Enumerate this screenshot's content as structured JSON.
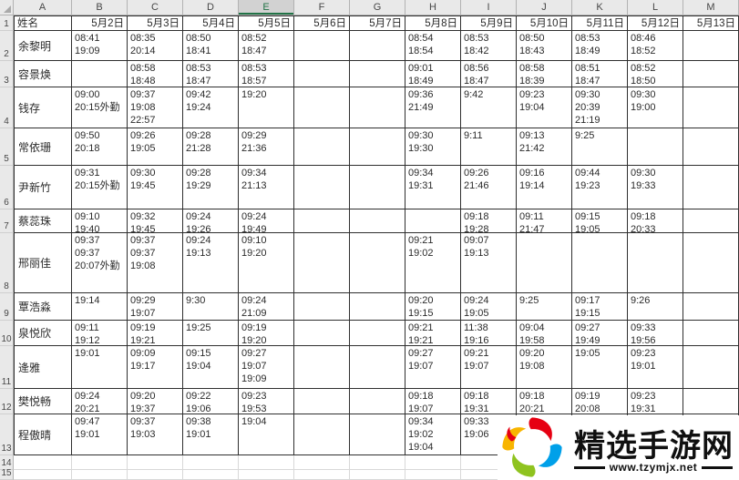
{
  "sheet": {
    "column_letters": [
      "A",
      "B",
      "C",
      "D",
      "E",
      "F",
      "G",
      "H",
      "I",
      "J",
      "K",
      "L",
      "M"
    ],
    "selected_column": "E",
    "row_count": 15,
    "header_row": {
      "name_label": "姓名",
      "dates": [
        "5月2日",
        "5月3日",
        "5月4日",
        "5月5日",
        "5月6日",
        "5月7日",
        "5月8日",
        "5月9日",
        "5月10日",
        "5月11日",
        "5月12日",
        "5月13日"
      ]
    },
    "records": [
      {
        "name": "余黎明",
        "times": [
          [
            "08:41",
            "19:09"
          ],
          [
            "08:35",
            "20:14"
          ],
          [
            "08:50",
            "18:41"
          ],
          [
            "08:52",
            "18:47"
          ],
          [],
          [],
          [
            "08:54",
            "18:54"
          ],
          [
            "08:53",
            "18:42"
          ],
          [
            "08:50",
            "18:43"
          ],
          [
            "08:53",
            "18:49"
          ],
          [
            "08:46",
            "18:52"
          ],
          []
        ]
      },
      {
        "name": "容景焕",
        "times": [
          [],
          [
            "08:58",
            "18:48"
          ],
          [
            "08:53",
            "18:47"
          ],
          [
            "08:53",
            "18:57"
          ],
          [],
          [],
          [
            "09:01",
            "18:49"
          ],
          [
            "08:56",
            "18:47"
          ],
          [
            "08:58",
            "18:39"
          ],
          [
            "08:51",
            "18:47"
          ],
          [
            "08:52",
            "18:50"
          ],
          []
        ]
      },
      {
        "name": "钱存",
        "times": [
          [
            "09:00",
            "20:15外勤"
          ],
          [
            "09:37",
            "19:08",
            "22:57"
          ],
          [
            "09:42",
            "19:24"
          ],
          [
            "19:20"
          ],
          [],
          [],
          [
            "09:36",
            "21:49"
          ],
          [
            "9:42"
          ],
          [
            "09:23",
            "19:04"
          ],
          [
            "09:30",
            "20:39",
            "21:19"
          ],
          [
            "09:30",
            "19:00"
          ],
          []
        ]
      },
      {
        "name": "常依珊",
        "times": [
          [
            "09:50",
            "20:18"
          ],
          [
            "09:26",
            "19:05"
          ],
          [
            "09:28",
            "21:28"
          ],
          [
            "09:29",
            "21:36"
          ],
          [],
          [],
          [
            "09:30",
            "19:30"
          ],
          [
            "9:11"
          ],
          [
            "09:13",
            "21:42"
          ],
          [
            "9:25"
          ],
          [],
          []
        ]
      },
      {
        "name": "尹新竹",
        "times": [
          [
            "09:31",
            "20:15外勤"
          ],
          [
            "09:30",
            "19:45"
          ],
          [
            "09:28",
            "19:29"
          ],
          [
            "09:34",
            "21:13"
          ],
          [],
          [],
          [
            "09:34",
            "19:31"
          ],
          [
            "09:26",
            "21:46"
          ],
          [
            "09:16",
            "19:14"
          ],
          [
            "09:44",
            "19:23"
          ],
          [
            "09:30",
            "19:33"
          ],
          []
        ]
      },
      {
        "name": "蔡蕊珠",
        "times": [
          [
            "09:10",
            "19:40"
          ],
          [
            "09:32",
            "19:45"
          ],
          [
            "09:24",
            "19:26"
          ],
          [
            "09:24",
            "19:49"
          ],
          [],
          [],
          [],
          [
            "09:18",
            "19:28"
          ],
          [
            "09:11",
            "21:47"
          ],
          [
            "09:15",
            "19:05"
          ],
          [
            "09:18",
            "20:33"
          ],
          []
        ]
      },
      {
        "name": "邢丽佳",
        "times": [
          [
            "09:37",
            "09:37",
            "20:07外勤"
          ],
          [
            "09:37",
            "09:37",
            "19:08"
          ],
          [
            "09:24",
            "19:13"
          ],
          [
            "09:10",
            "19:20"
          ],
          [],
          [],
          [
            "09:21",
            "19:02"
          ],
          [
            "09:07",
            "19:13"
          ],
          [],
          [],
          [],
          []
        ]
      },
      {
        "name": "覃浩淼",
        "times": [
          [
            "19:14"
          ],
          [
            "09:29",
            "19:07"
          ],
          [
            "9:30"
          ],
          [
            "09:24",
            "21:09"
          ],
          [],
          [],
          [
            "09:20",
            "19:15"
          ],
          [
            "09:24",
            "19:05"
          ],
          [
            "9:25"
          ],
          [
            "09:17",
            "19:15"
          ],
          [
            "9:26"
          ],
          []
        ]
      },
      {
        "name": "泉悦欣",
        "times": [
          [
            "09:11",
            "19:12"
          ],
          [
            "09:19",
            "19:21"
          ],
          [
            "19:25"
          ],
          [
            "09:19",
            "19:20"
          ],
          [],
          [],
          [
            "09:21",
            "19:21"
          ],
          [
            "11:38",
            "19:16"
          ],
          [
            "09:04",
            "19:58"
          ],
          [
            "09:27",
            "19:49"
          ],
          [
            "09:33",
            "19:56"
          ],
          []
        ]
      },
      {
        "name": "逄雅",
        "times": [
          [
            "19:01"
          ],
          [
            "09:09",
            "19:17"
          ],
          [
            "09:15",
            "19:04"
          ],
          [
            "09:27",
            "19:07",
            "19:09"
          ],
          [],
          [],
          [
            "09:27",
            "19:07"
          ],
          [
            "09:21",
            "19:07"
          ],
          [
            "09:20",
            "19:08"
          ],
          [
            "19:05"
          ],
          [
            "09:23",
            "19:01"
          ],
          []
        ]
      },
      {
        "name": "樊悦畅",
        "times": [
          [
            "09:24",
            "20:21"
          ],
          [
            "09:20",
            "19:37"
          ],
          [
            "09:22",
            "19:06"
          ],
          [
            "09:23",
            "19:53"
          ],
          [],
          [],
          [
            "09:18",
            "19:07"
          ],
          [
            "09:18",
            "19:31"
          ],
          [
            "09:18",
            "20:21"
          ],
          [
            "09:19",
            "20:08"
          ],
          [
            "09:23",
            "19:31"
          ],
          []
        ]
      },
      {
        "name": "程傲晴",
        "times": [
          [
            "09:47",
            "19:01"
          ],
          [
            "09:37",
            "19:03"
          ],
          [
            "09:38",
            "19:01"
          ],
          [
            "19:04"
          ],
          [],
          [],
          [
            "09:34",
            "19:02",
            "19:04"
          ],
          [
            "09:33",
            "19:06"
          ],
          [],
          [],
          [],
          []
        ]
      }
    ]
  },
  "watermark": {
    "site_name": "精选手游网",
    "site_url": "www.tzymjx.net",
    "logo_colors": {
      "red": "#e60012",
      "blue": "#00a0e9",
      "green": "#8fc31f",
      "yellow": "#f8b500"
    }
  },
  "colors": {
    "accent_green": "#217346",
    "table_border": "#2f2f2f",
    "gridline": "#d8d8d8",
    "header_bg": "#e9e9e9",
    "header_selected_bg": "#d2d2d2"
  }
}
